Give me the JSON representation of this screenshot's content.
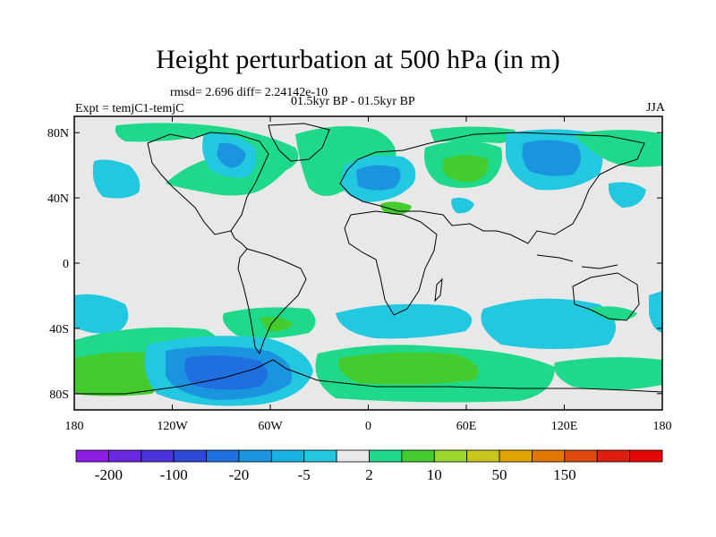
{
  "title": "Height perturbation at 500 hPa (in m)",
  "stats": "rmsd= 2.696 diff= 2.24142e-10",
  "experiment": "Expt = temjC1-temjC",
  "period": "01.5kyr BP - 01.5kyr BP",
  "season": "JJA",
  "map": {
    "projection": "cylindrical equidistant",
    "lon_range": [
      -180,
      180
    ],
    "lat_range": [
      -90,
      90
    ],
    "lon_ticks": [
      {
        "lon": -180,
        "label": "180"
      },
      {
        "lon": -120,
        "label": "120W"
      },
      {
        "lon": -60,
        "label": "60W"
      },
      {
        "lon": 0,
        "label": "0"
      },
      {
        "lon": 60,
        "label": "60E"
      },
      {
        "lon": 120,
        "label": "120E"
      },
      {
        "lon": 180,
        "label": "180"
      }
    ],
    "lat_ticks": [
      {
        "lat": 80,
        "label": "80N"
      },
      {
        "lat": 40,
        "label": "40N"
      },
      {
        "lat": 0,
        "label": "0"
      },
      {
        "lat": -40,
        "label": "40S"
      },
      {
        "lat": -80,
        "label": "80S"
      }
    ],
    "background_color": "#e8e8e8"
  },
  "colorbar": {
    "colors": [
      "#8c1ee6",
      "#6a28e0",
      "#4a32dc",
      "#2e48d8",
      "#1f6fe0",
      "#1b94e0",
      "#15b4e2",
      "#22c7e0",
      "#e8e8e8",
      "#1ed98a",
      "#44cc2e",
      "#9ad62c",
      "#c8c61c",
      "#dea400",
      "#e07800",
      "#e04a10",
      "#e01e10",
      "#e60808"
    ],
    "labels": [
      {
        "after_box": 1,
        "text": "-200"
      },
      {
        "after_box": 3,
        "text": "-100"
      },
      {
        "after_box": 5,
        "text": "-20"
      },
      {
        "after_box": 7,
        "text": "-5"
      },
      {
        "after_box": 9,
        "text": "2"
      },
      {
        "after_box": 11,
        "text": "10"
      },
      {
        "after_box": 13,
        "text": "50"
      },
      {
        "after_box": 15,
        "text": "150"
      }
    ]
  },
  "fields": [
    {
      "lon": -130,
      "lat": 62,
      "level": "-20"
    },
    {
      "lon": -165,
      "lat": 52,
      "level": "-5"
    },
    {
      "lon": 20,
      "lat": 56,
      "level": "-20"
    },
    {
      "lon": 122,
      "lat": 65,
      "level": "-20"
    },
    {
      "lon": 160,
      "lat": 40,
      "level": "-5"
    },
    {
      "lon": 40,
      "lat": 40,
      "level": "-5"
    },
    {
      "lon": 60,
      "lat": 57,
      "level": "10"
    },
    {
      "lon": 70,
      "lat": 72,
      "level": "2"
    },
    {
      "lon": -60,
      "lat": 75,
      "level": "2"
    },
    {
      "lon": -25,
      "lat": 60,
      "level": "2"
    },
    {
      "lon": -150,
      "lat": 82,
      "level": "2"
    },
    {
      "lon": 5,
      "lat": 36,
      "level": "10"
    },
    {
      "lon": -87,
      "lat": -70,
      "level": "-20"
    },
    {
      "lon": -160,
      "lat": -32,
      "level": "-5"
    },
    {
      "lon": 45,
      "lat": -35,
      "level": "-5"
    },
    {
      "lon": 120,
      "lat": -42,
      "level": "-5"
    },
    {
      "lon": 50,
      "lat": -67,
      "level": "10"
    },
    {
      "lon": -130,
      "lat": -62,
      "level": "10"
    },
    {
      "lon": -60,
      "lat": -35,
      "level": "2"
    },
    {
      "lon": 145,
      "lat": -72,
      "level": "2"
    }
  ]
}
